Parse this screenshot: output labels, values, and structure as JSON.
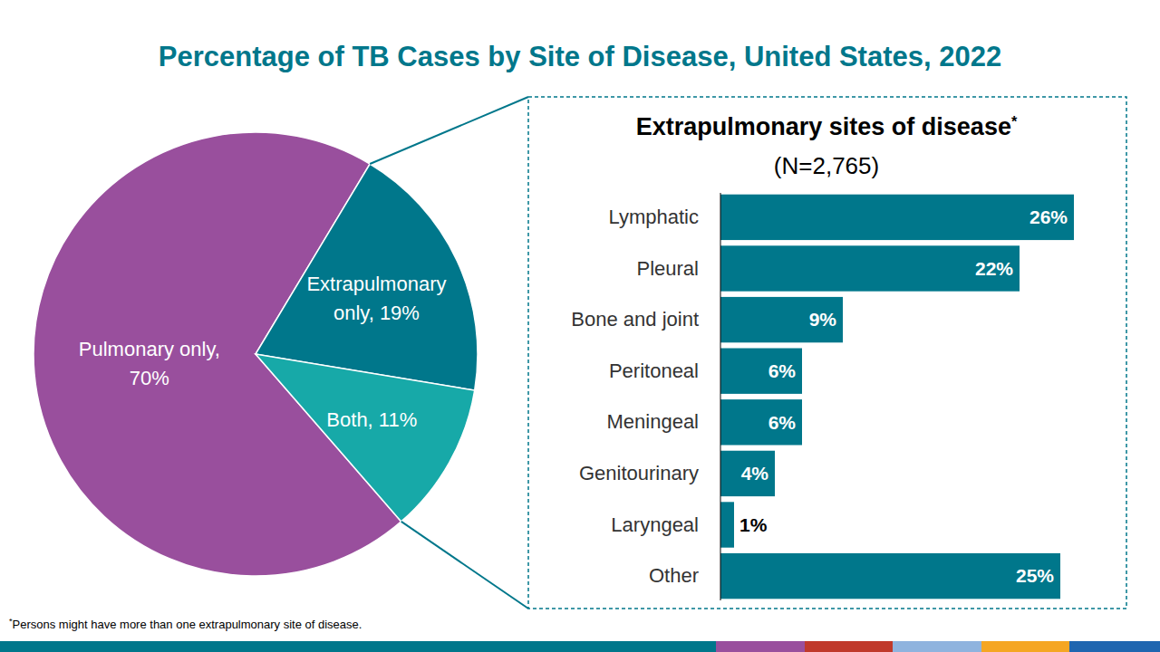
{
  "title": "Percentage of TB Cases by Site of Disease, United States, 2022",
  "footnote": "*Persons might have more than one extrapulmonary site of disease.",
  "chart_data": [
    {
      "type": "pie",
      "categories": [
        "Pulmonary only",
        "Extrapulmonary only",
        "Both"
      ],
      "values": [
        70,
        19,
        11
      ],
      "value_labels": [
        "Pulmonary only, 70%",
        "Extrapulmonary only, 19%",
        "Both, 11%"
      ],
      "colors": [
        "#994f9d",
        "#00778b",
        "#17a9a8"
      ],
      "data_labels": true
    },
    {
      "type": "bar",
      "title": "Extrapulmonary sites of disease*",
      "subtitle": "(N=2,765)",
      "orientation": "horizontal",
      "categories": [
        "Lymphatic",
        "Pleural",
        "Bone and joint",
        "Peritoneal",
        "Meningeal",
        "Genitourinary",
        "Laryngeal",
        "Other"
      ],
      "values": [
        26,
        22,
        9,
        6,
        6,
        4,
        1,
        25
      ],
      "value_labels": [
        "26%",
        "22%",
        "9%",
        "6%",
        "6%",
        "4%",
        "1%",
        "25%"
      ],
      "color": "#00778b",
      "xlim": [
        0,
        26
      ],
      "data_labels": true,
      "tick_labels": "y"
    }
  ]
}
